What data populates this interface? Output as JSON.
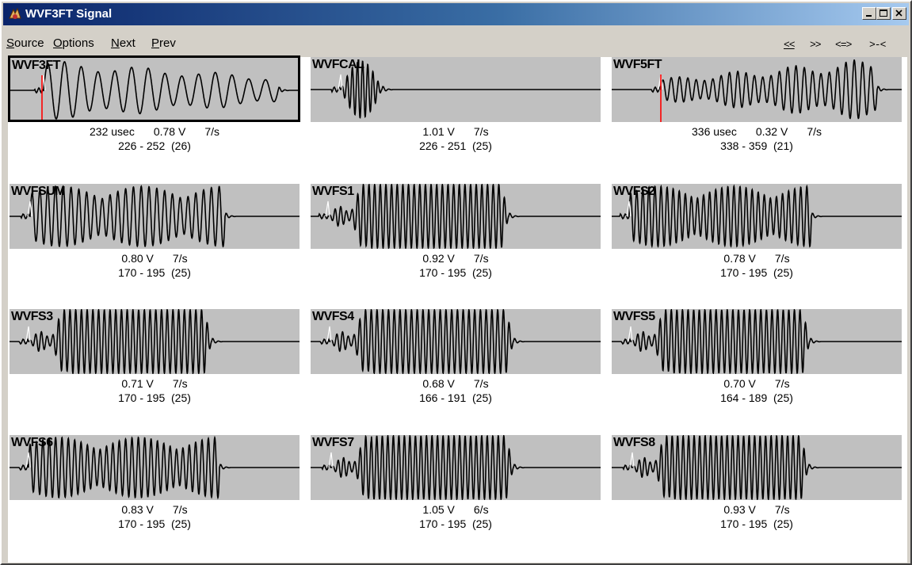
{
  "window": {
    "title": "WVF3FT Signal",
    "colors": {
      "title_gradient_start": "#0a246a",
      "title_gradient_end": "#a6caf0",
      "plot_bg": "#c0c0c0",
      "cursor_red": "#ff0000"
    }
  },
  "menu": {
    "items": [
      {
        "label": "Source"
      },
      {
        "label": "Options"
      },
      {
        "label": "Next"
      },
      {
        "label": "Prev"
      }
    ],
    "nav": [
      {
        "label": "<<"
      },
      {
        "label": ">>"
      },
      {
        "label": "<=>"
      },
      {
        "label": ">-<"
      }
    ]
  },
  "panels": [
    {
      "label": "WVF3FT",
      "time": "232 usec",
      "volts": "0.78 V",
      "rate": "7/s",
      "range": "226 - 252  (26)",
      "selected": true,
      "cursor": true
    },
    {
      "label": "WVFCAL",
      "time": "",
      "volts": "1.01 V",
      "rate": "7/s",
      "range": "226 - 251  (25)",
      "selected": false,
      "cursor": false
    },
    {
      "label": "WVF5FT",
      "time": "336 usec",
      "volts": "0.32 V",
      "rate": "7/s",
      "range": "338 - 359  (21)",
      "selected": false,
      "cursor": true
    },
    {
      "label": "WVFSUM",
      "time": "",
      "volts": "0.80 V",
      "rate": "7/s",
      "range": "170 - 195  (25)",
      "selected": false,
      "cursor": false
    },
    {
      "label": "WVFS1",
      "time": "",
      "volts": "0.92 V",
      "rate": "7/s",
      "range": "170 - 195  (25)",
      "selected": false,
      "cursor": false
    },
    {
      "label": "WVFS2",
      "time": "",
      "volts": "0.78 V",
      "rate": "7/s",
      "range": "170 - 195  (25)",
      "selected": false,
      "cursor": false
    },
    {
      "label": "WVFS3",
      "time": "",
      "volts": "0.71 V",
      "rate": "7/s",
      "range": "170 - 195  (25)",
      "selected": false,
      "cursor": false
    },
    {
      "label": "WVFS4",
      "time": "",
      "volts": "0.68 V",
      "rate": "7/s",
      "range": "166 - 191  (25)",
      "selected": false,
      "cursor": false
    },
    {
      "label": "WVFS5",
      "time": "",
      "volts": "0.70 V",
      "rate": "7/s",
      "range": "164 - 189  (25)",
      "selected": false,
      "cursor": false
    },
    {
      "label": "WVFS6",
      "time": "",
      "volts": "0.83 V",
      "rate": "7/s",
      "range": "170 - 195  (25)",
      "selected": false,
      "cursor": false
    },
    {
      "label": "WVFS7",
      "time": "",
      "volts": "1.05 V",
      "rate": "6/s",
      "range": "170 - 195  (25)",
      "selected": false,
      "cursor": false
    },
    {
      "label": "WVFS8",
      "time": "",
      "volts": "0.93 V",
      "rate": "7/s",
      "range": "170 - 195  (25)",
      "selected": false,
      "cursor": false
    }
  ]
}
